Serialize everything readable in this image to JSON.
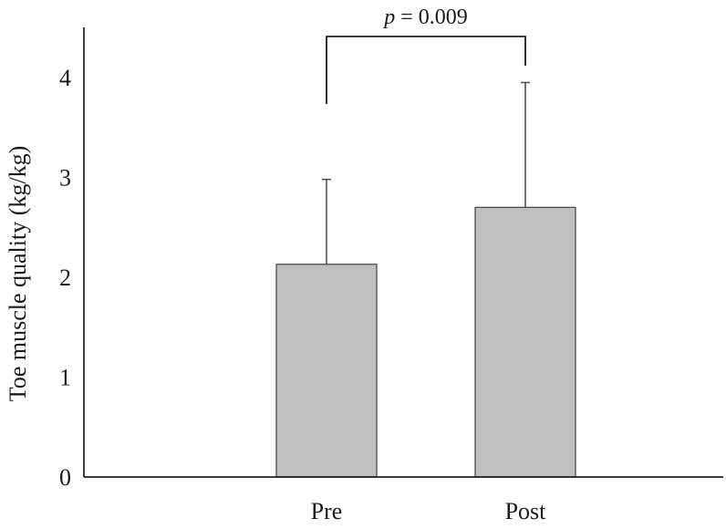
{
  "chart_data": {
    "type": "bar",
    "categories": [
      "Pre",
      "Post"
    ],
    "values": [
      2.13,
      2.7
    ],
    "error_upper": [
      2.98,
      3.95
    ],
    "ylabel": "Toe muscle quality (kg/kg)",
    "ylim": [
      0,
      4.5
    ],
    "yticks": [
      "0",
      "1",
      "2",
      "3",
      "4"
    ],
    "significance": {
      "label_italic": "p",
      "label_rest": " = 0.009",
      "between": [
        "Pre",
        "Post"
      ]
    },
    "colors": {
      "bar_fill": "#c0c0c0",
      "bar_stroke": "#404040",
      "axis": "#000000"
    },
    "grid": false,
    "legend": "none"
  }
}
